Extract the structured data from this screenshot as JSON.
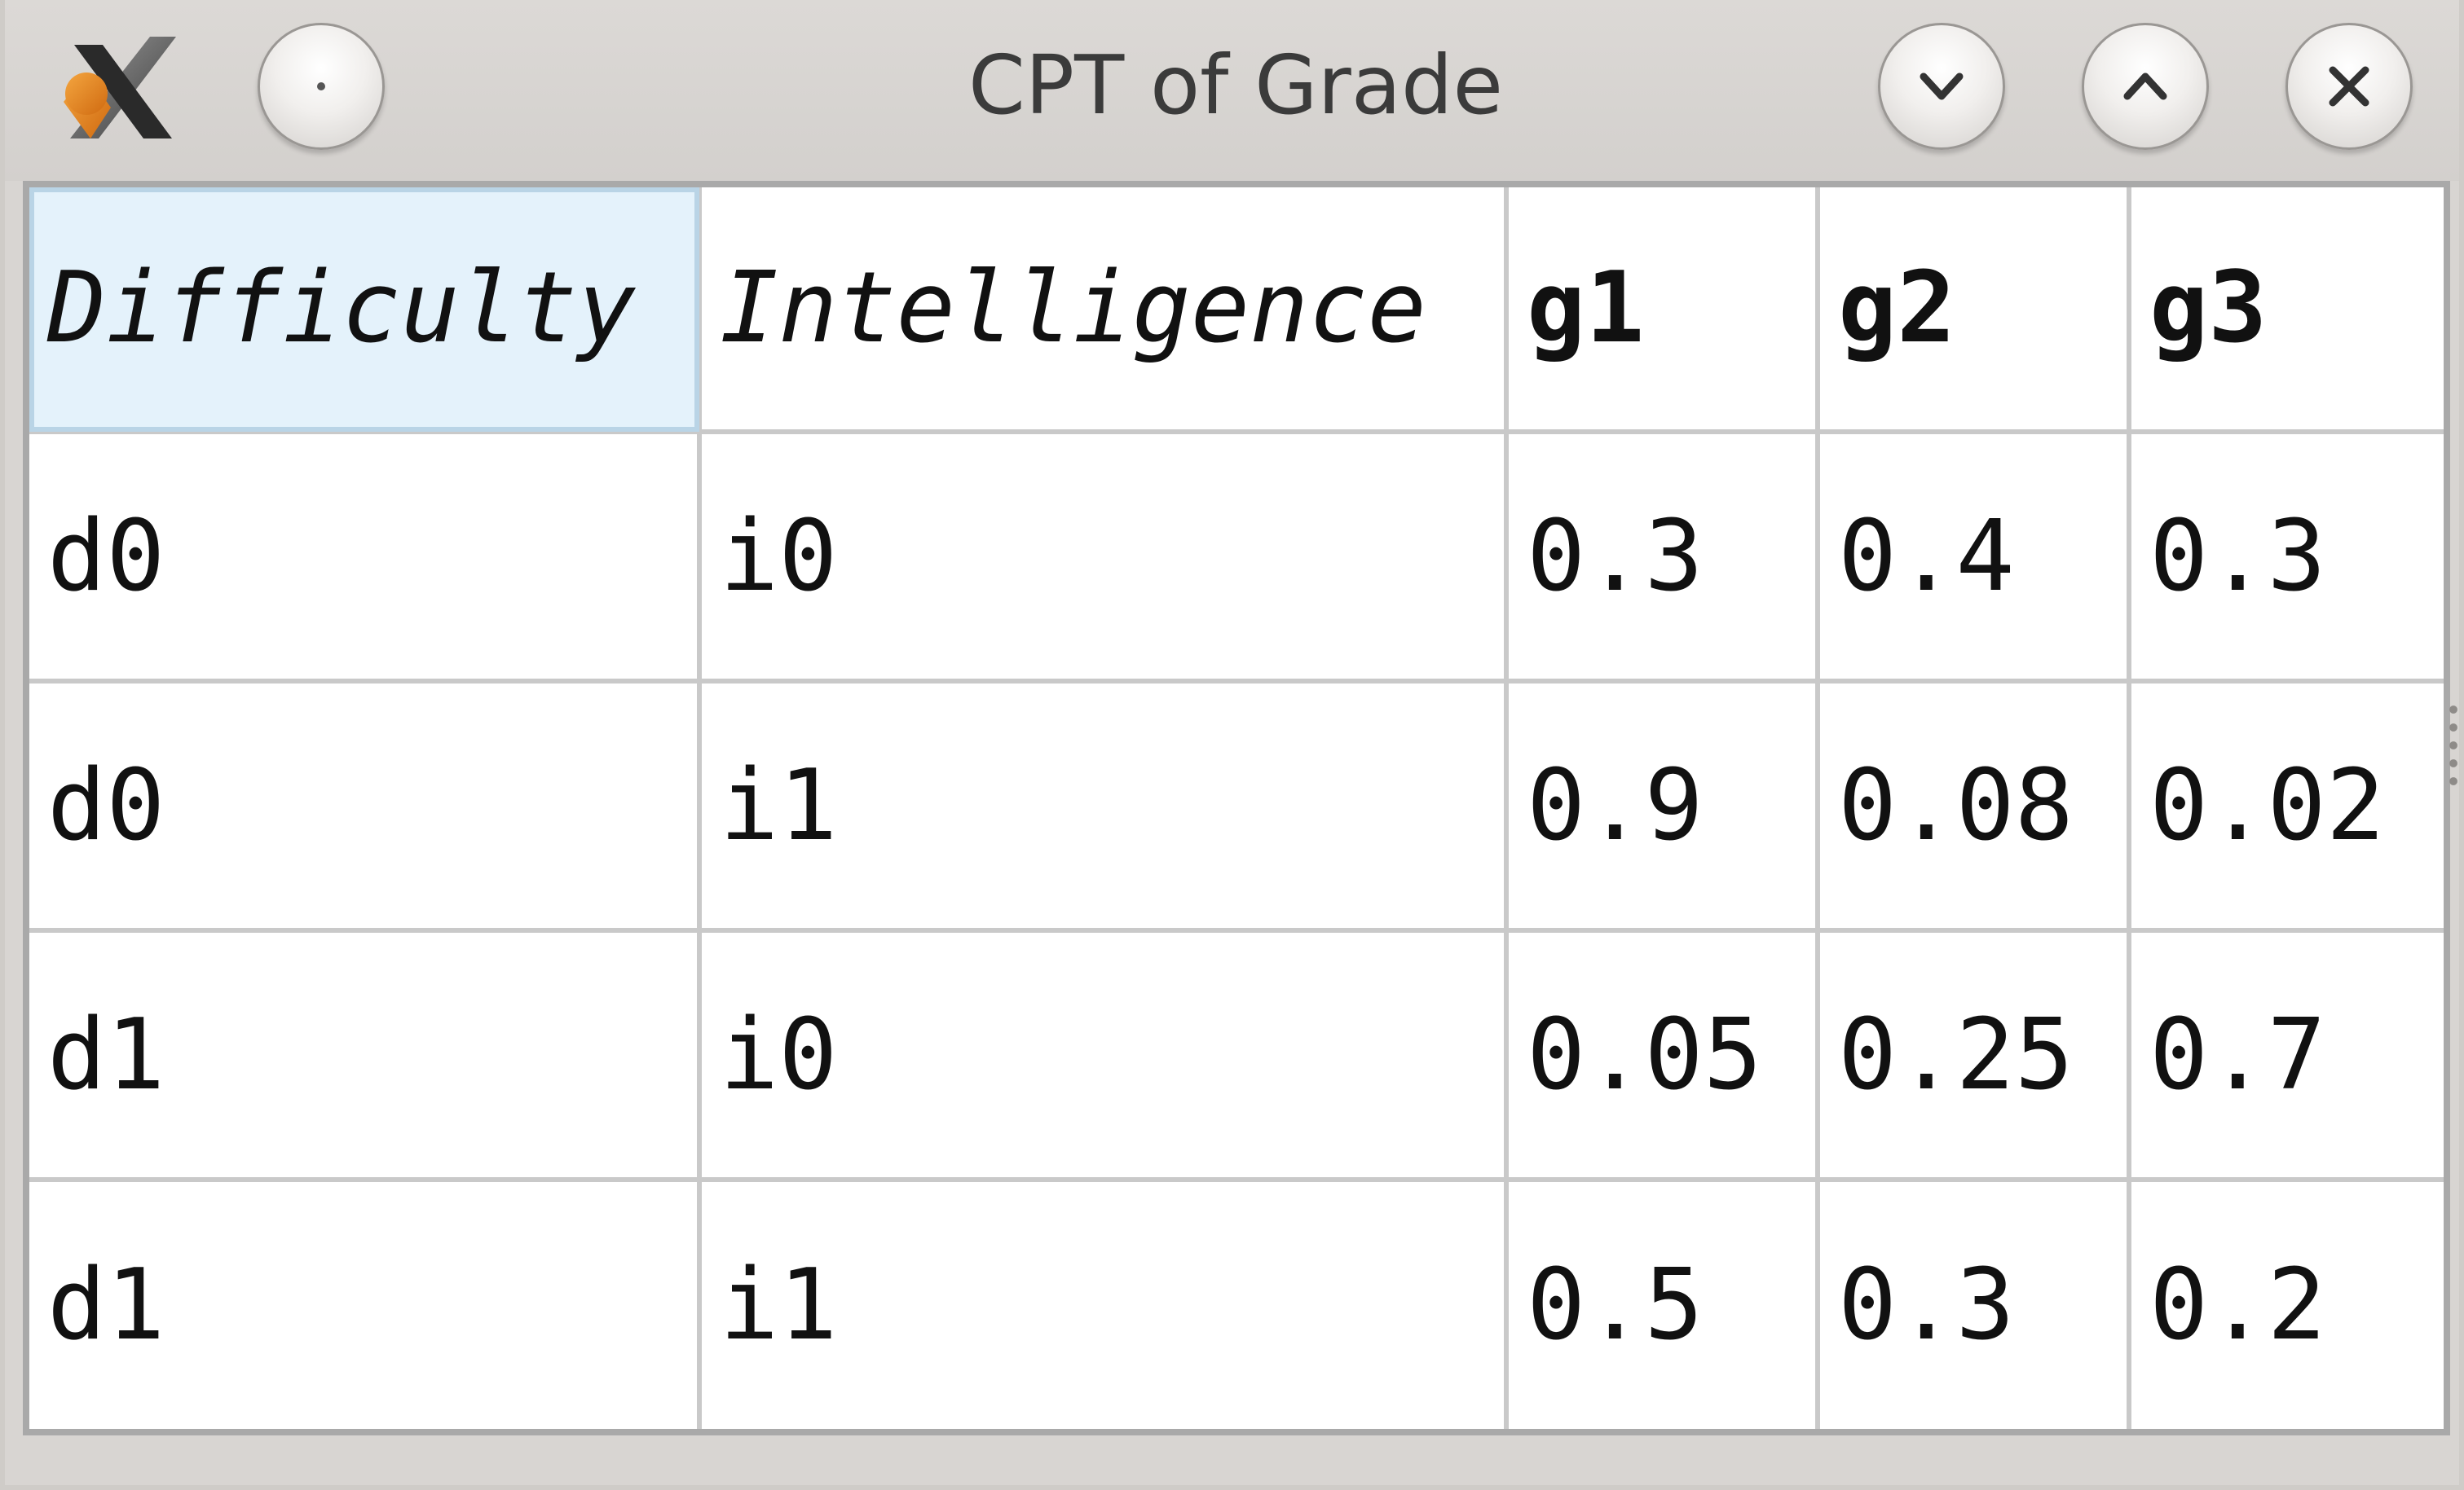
{
  "window": {
    "title": "CPT of Grade",
    "icons": {
      "app": "x-app-icon",
      "menu": "window-menu-icon",
      "minimize": "chevron-down-icon",
      "maximize": "chevron-up-icon",
      "close": "close-icon"
    }
  },
  "table": {
    "columns": [
      "Difficulty",
      "Intelligence",
      "g1",
      "g2",
      "g3"
    ],
    "rows": [
      [
        "d0",
        "i0",
        "0.3",
        "0.4",
        "0.3"
      ],
      [
        "d0",
        "i1",
        "0.9",
        "0.08",
        "0.02"
      ],
      [
        "d1",
        "i0",
        "0.05",
        "0.25",
        "0.7"
      ],
      [
        "d1",
        "i1",
        "0.5",
        "0.3",
        "0.2"
      ]
    ],
    "selected_cell": "Difficulty",
    "colors": {
      "selected_background": "#e4f2fb",
      "grid": "#c9c9c9"
    }
  }
}
